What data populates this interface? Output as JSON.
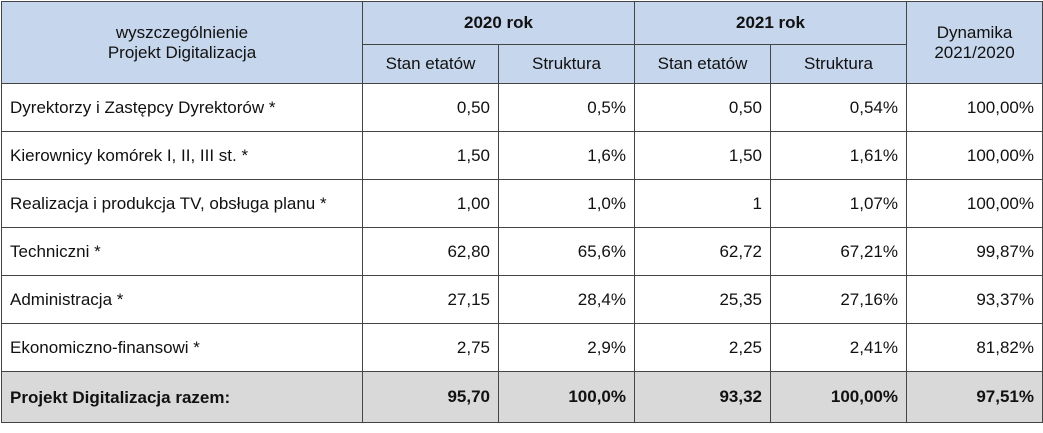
{
  "table": {
    "header": {
      "title": [
        "wyszczególnienie",
        "Projekt Digitalizacja"
      ],
      "groups": [
        "2020 rok",
        "2021 rok"
      ],
      "subheaders": [
        "Stan etatów",
        "Struktura",
        "Stan etatów",
        "Struktura"
      ],
      "dynamics": [
        "Dynamika",
        "2021/2020"
      ]
    },
    "rows": [
      [
        "Dyrektorzy i Zastępcy Dyrektorów *",
        "0,50",
        "0,5%",
        "0,50",
        "0,54%",
        "100,00%"
      ],
      [
        "Kierownicy komórek I, II, III st. *",
        "1,50",
        "1,6%",
        "1,50",
        "1,61%",
        "100,00%"
      ],
      [
        "Realizacja i produkcja TV, obsługa planu *",
        "1,00",
        "1,0%",
        "1",
        "1,07%",
        "100,00%"
      ],
      [
        "Techniczni *",
        "62,80",
        "65,6%",
        "62,72",
        "67,21%",
        "99,87%"
      ],
      [
        "Administracja *",
        "27,15",
        "28,4%",
        "25,35",
        "27,16%",
        "93,37%"
      ],
      [
        "Ekonomiczno-finansowi *",
        "2,75",
        "2,9%",
        "2,25",
        "2,41%",
        "81,82%"
      ]
    ],
    "total": [
      "Projekt Digitalizacja razem:",
      "95,70",
      "100,0%",
      "93,32",
      "100,00%",
      "97,51%"
    ]
  }
}
